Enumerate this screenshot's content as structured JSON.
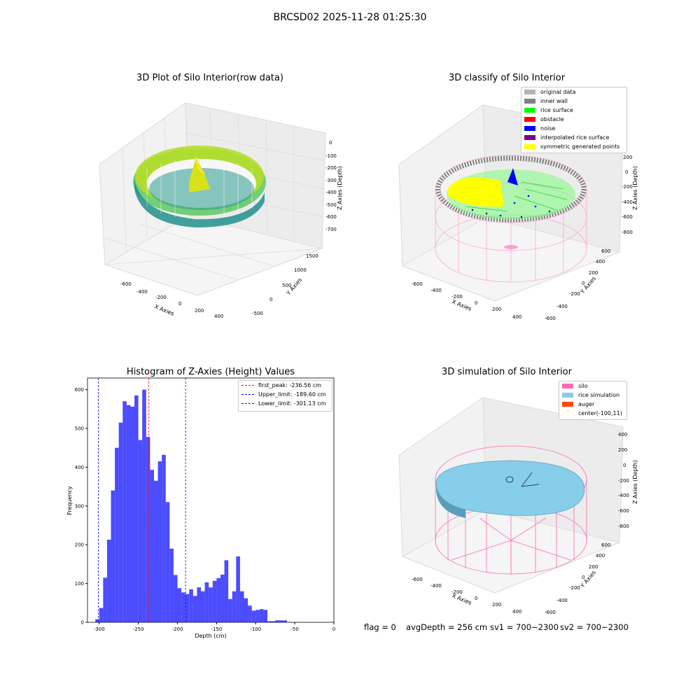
{
  "suptitle": "BRCSD02 2025-11-28 01:25:30",
  "panels": {
    "raw": {
      "title": "3D Plot of Silo Interior(row data)",
      "xlabel": "X Axies",
      "ylabel": "Y Axies",
      "zlabel": "Z Axies (Depth)",
      "xticks": [
        "-600",
        "-400",
        "-200",
        "0",
        "200",
        "400"
      ],
      "yticks": [
        "-500",
        "0",
        "500",
        "1000",
        "1500"
      ],
      "zticks": [
        "0",
        "-100",
        "-200",
        "-300",
        "-400",
        "-500",
        "-600",
        "-700"
      ]
    },
    "classify": {
      "title": "3D classify of Silo Interior",
      "xlabel": "X Axies",
      "ylabel": "Y Axies",
      "zlabel": "Z Axies (Depth)",
      "xticks": [
        "-600",
        "-400",
        "-200",
        "0",
        "200",
        "400"
      ],
      "yticks": [
        "-600",
        "-400",
        "-200",
        "0",
        "200",
        "400",
        "600"
      ],
      "zticks": [
        "200",
        "0",
        "-200",
        "-400",
        "-600",
        "-800"
      ],
      "legend": [
        {
          "label": "original data",
          "color": "#b3b3b3"
        },
        {
          "label": "inner wall",
          "color": "#808080"
        },
        {
          "label": "rice surface",
          "color": "#00ff00"
        },
        {
          "label": "obstacle",
          "color": "#ff0000"
        },
        {
          "label": "noise",
          "color": "#0000ff"
        },
        {
          "label": "interpolated rice surface",
          "color": "#800080"
        },
        {
          "label": "symmetric generated points",
          "color": "#ffff00"
        }
      ]
    },
    "simulation": {
      "title": "3D simulation of Silo Interior",
      "xlabel": "X Axies",
      "ylabel": "Y Axies",
      "zlabel": "Z Axies (Depth)",
      "xticks": [
        "-600",
        "-400",
        "-200",
        "0",
        "200",
        "400"
      ],
      "yticks": [
        "-600",
        "-400",
        "-200",
        "0",
        "200",
        "400",
        "600"
      ],
      "zticks": [
        "400",
        "200",
        "0",
        "-200",
        "-400",
        "-600",
        "-800"
      ],
      "legend": [
        {
          "label": "silo",
          "color": "#ff69b4"
        },
        {
          "label": "rice simulation",
          "color": "#87ceeb"
        },
        {
          "label": "auger",
          "color": "#ff4500"
        },
        {
          "label": "center(-100,11)",
          "color": "none"
        }
      ]
    }
  },
  "status": {
    "flag": "flag = 0",
    "avg_depth": "avgDepth = 256 cm",
    "sv1": "sv1 = 700~2300",
    "sv2": "sv2 = 700~2300"
  },
  "chart_data": {
    "type": "bar",
    "title": "Histogram of Z-Axies (Height) Values",
    "xlabel": "Depth (cm)",
    "ylabel": "Frequency",
    "xlim": [
      -315,
      0
    ],
    "ylim": [
      0,
      630
    ],
    "xticks": [
      -300,
      -250,
      -200,
      -150,
      -100,
      -50,
      0
    ],
    "yticks": [
      0,
      100,
      200,
      300,
      400,
      500,
      600
    ],
    "bar_color": "#0000ff",
    "bins": [
      {
        "x0": -305,
        "x1": -300,
        "count": 8
      },
      {
        "x0": -300,
        "x1": -295,
        "count": 37
      },
      {
        "x0": -295,
        "x1": -290,
        "count": 115
      },
      {
        "x0": -290,
        "x1": -285,
        "count": 213
      },
      {
        "x0": -285,
        "x1": -280,
        "count": 340
      },
      {
        "x0": -280,
        "x1": -275,
        "count": 450
      },
      {
        "x0": -275,
        "x1": -270,
        "count": 515
      },
      {
        "x0": -270,
        "x1": -265,
        "count": 570
      },
      {
        "x0": -265,
        "x1": -260,
        "count": 560
      },
      {
        "x0": -260,
        "x1": -255,
        "count": 556
      },
      {
        "x0": -255,
        "x1": -250,
        "count": 585
      },
      {
        "x0": -250,
        "x1": -245,
        "count": 470
      },
      {
        "x0": -245,
        "x1": -240,
        "count": 600
      },
      {
        "x0": -240,
        "x1": -235,
        "count": 478
      },
      {
        "x0": -235,
        "x1": -230,
        "count": 393
      },
      {
        "x0": -230,
        "x1": -225,
        "count": 365
      },
      {
        "x0": -225,
        "x1": -220,
        "count": 415
      },
      {
        "x0": -220,
        "x1": -215,
        "count": 432
      },
      {
        "x0": -215,
        "x1": -210,
        "count": 310
      },
      {
        "x0": -210,
        "x1": -205,
        "count": 190
      },
      {
        "x0": -205,
        "x1": -200,
        "count": 122
      },
      {
        "x0": -200,
        "x1": -195,
        "count": 88
      },
      {
        "x0": -195,
        "x1": -190,
        "count": 77
      },
      {
        "x0": -190,
        "x1": -185,
        "count": 73
      },
      {
        "x0": -185,
        "x1": -180,
        "count": 85
      },
      {
        "x0": -180,
        "x1": -175,
        "count": 68
      },
      {
        "x0": -175,
        "x1": -170,
        "count": 90
      },
      {
        "x0": -170,
        "x1": -165,
        "count": 80
      },
      {
        "x0": -165,
        "x1": -160,
        "count": 103
      },
      {
        "x0": -160,
        "x1": -155,
        "count": 90
      },
      {
        "x0": -155,
        "x1": -150,
        "count": 107
      },
      {
        "x0": -150,
        "x1": -145,
        "count": 114
      },
      {
        "x0": -145,
        "x1": -140,
        "count": 123
      },
      {
        "x0": -140,
        "x1": -135,
        "count": 160
      },
      {
        "x0": -135,
        "x1": -130,
        "count": 60
      },
      {
        "x0": -130,
        "x1": -125,
        "count": 80
      },
      {
        "x0": -125,
        "x1": -120,
        "count": 170
      },
      {
        "x0": -120,
        "x1": -115,
        "count": 80
      },
      {
        "x0": -115,
        "x1": -110,
        "count": 62
      },
      {
        "x0": -110,
        "x1": -105,
        "count": 43
      },
      {
        "x0": -105,
        "x1": -100,
        "count": 30
      },
      {
        "x0": -100,
        "x1": -95,
        "count": 32
      },
      {
        "x0": -95,
        "x1": -90,
        "count": 34
      },
      {
        "x0": -90,
        "x1": -85,
        "count": 32
      },
      {
        "x0": -85,
        "x1": -80,
        "count": 3
      },
      {
        "x0": -80,
        "x1": -75,
        "count": 3
      },
      {
        "x0": -75,
        "x1": -70,
        "count": 5
      },
      {
        "x0": -70,
        "x1": -65,
        "count": 5
      },
      {
        "x0": -65,
        "x1": -60,
        "count": 5
      }
    ],
    "vlines": [
      {
        "label": "first_peak: -236.56 cm",
        "x": -236.56,
        "color": "#ff0000"
      },
      {
        "label": "Upper_limit: -189.60 cm",
        "x": -189.6,
        "color": "#0000ff"
      },
      {
        "label": "Lower_limit: -301.13 cm",
        "x": -301.13,
        "color": "#0000ff"
      }
    ],
    "legend_position": "upper right"
  }
}
